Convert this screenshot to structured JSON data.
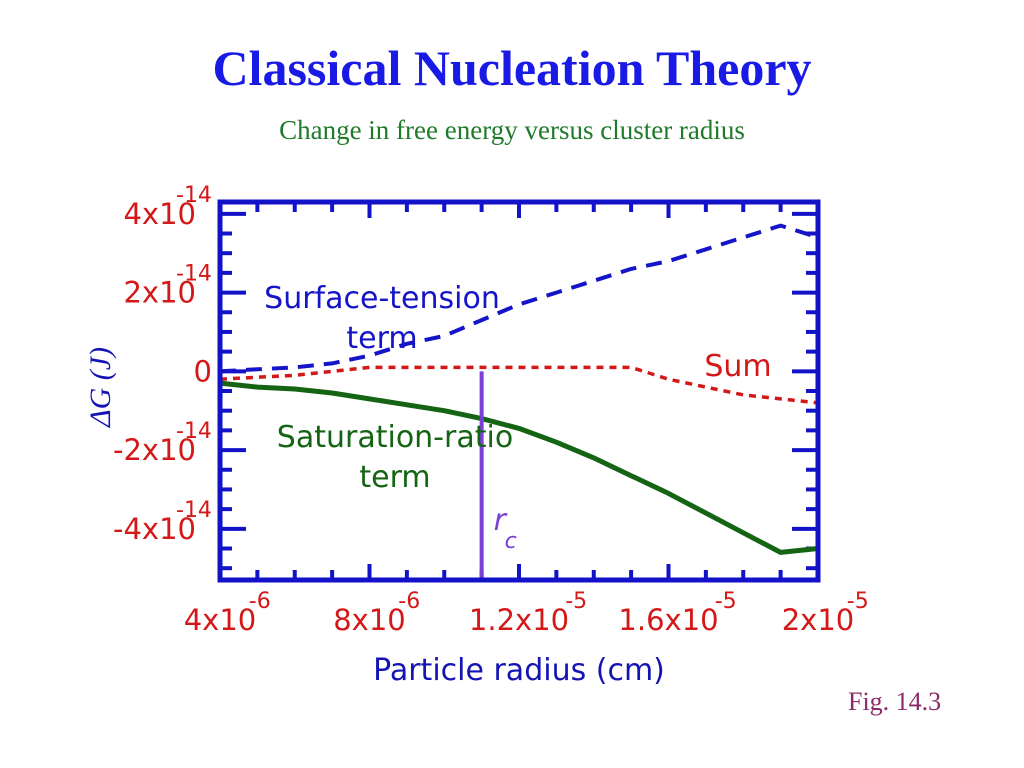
{
  "header": {
    "title": "Classical Nucleation Theory",
    "subtitle": "Change in free energy versus cluster radius"
  },
  "figure_ref": "Fig. 14.3",
  "colors": {
    "frame": "#1212c8",
    "tick_labels": "#d41818",
    "surface": "#1414c8",
    "sum": "#d41818",
    "saturation": "#146414",
    "rc_line": "#7a3fd6",
    "axis_title": "#1414b4"
  },
  "chart_data": {
    "type": "line",
    "xlabel": "Particle  radius  (cm)",
    "ylabel": "ΔG (J)",
    "xlim": [
      4e-06,
      2e-05
    ],
    "ylim": [
      -5.3e-14,
      4.3e-14
    ],
    "grid": false,
    "x_ticks": [
      {
        "value": 4e-06,
        "mantissa": "4x10",
        "exponent": "-6"
      },
      {
        "value": 8e-06,
        "mantissa": "8x10",
        "exponent": "-6"
      },
      {
        "value": 1.2e-05,
        "mantissa": "1.2x10",
        "exponent": "-5"
      },
      {
        "value": 1.6e-05,
        "mantissa": "1.6x10",
        "exponent": "-5"
      },
      {
        "value": 2e-05,
        "mantissa": "2x10",
        "exponent": "-5"
      }
    ],
    "y_ticks": [
      {
        "value": 4e-14,
        "mantissa": "4x10",
        "exponent": "-14"
      },
      {
        "value": 2e-14,
        "mantissa": "2x10",
        "exponent": "-14"
      },
      {
        "value": 0,
        "mantissa": "0",
        "exponent": ""
      },
      {
        "value": -2e-14,
        "mantissa": "-2x10",
        "exponent": "-14"
      },
      {
        "value": -4e-14,
        "mantissa": "-4x10",
        "exponent": "-14"
      }
    ],
    "series": [
      {
        "name": "Surface-tension term",
        "label": [
          "Surface-tension",
          "term"
        ],
        "style": "dashed",
        "x": [
          4e-06,
          5e-06,
          6e-06,
          7e-06,
          8e-06,
          9e-06,
          1e-05,
          1.1e-05,
          1.2e-05,
          1.3e-05,
          1.4e-05,
          1.5e-05,
          1.6e-05,
          1.7e-05,
          1.8e-05,
          1.9e-05,
          2e-05
        ],
        "y": [
          0.0,
          5e-16,
          1e-15,
          2e-15,
          4e-15,
          7e-15,
          9e-15,
          1.3e-14,
          1.7e-14,
          2e-14,
          2.3e-14,
          2.6e-14,
          2.8e-14,
          3.1e-14,
          3.4e-14,
          3.7e-14,
          3.4e-14
        ]
      },
      {
        "name": "Sum",
        "label": [
          "Sum"
        ],
        "style": "dotted",
        "x": [
          4e-06,
          6e-06,
          8e-06,
          1e-05,
          1.2e-05,
          1.4e-05,
          1.5e-05,
          1.6e-05,
          1.7e-05,
          1.8e-05,
          1.9e-05,
          2e-05
        ],
        "y": [
          -2e-15,
          -1e-15,
          1e-15,
          1e-15,
          1e-15,
          1e-15,
          1e-15,
          -2e-15,
          -4e-15,
          -6e-15,
          -7e-15,
          -8e-15
        ]
      },
      {
        "name": "Saturation-ratio term",
        "label": [
          "Saturation-ratio",
          "term"
        ],
        "style": "solid",
        "x": [
          4e-06,
          5e-06,
          6e-06,
          7e-06,
          8e-06,
          9e-06,
          1e-05,
          1.1e-05,
          1.2e-05,
          1.3e-05,
          1.4e-05,
          1.5e-05,
          1.6e-05,
          1.7e-05,
          1.8e-05,
          1.9e-05,
          2e-05
        ],
        "y": [
          -3e-15,
          -4e-15,
          -4.5e-15,
          -5.5e-15,
          -7e-15,
          -8.5e-15,
          -1e-14,
          -1.2e-14,
          -1.45e-14,
          -1.8e-14,
          -2.2e-14,
          -2.65e-14,
          -3.1e-14,
          -3.6e-14,
          -4.1e-14,
          -4.6e-14,
          -4.5e-14
        ]
      }
    ],
    "annotations": [
      {
        "label": "r",
        "subscript": "c",
        "x": 1.1e-05
      }
    ]
  }
}
